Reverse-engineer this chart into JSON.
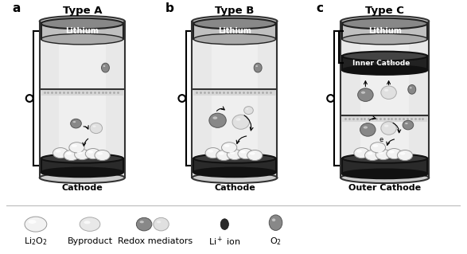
{
  "background_color": "#ffffff",
  "title_a": "Type A",
  "title_b": "Type B",
  "title_c": "Type C",
  "label_a": "a",
  "label_b": "b",
  "label_c": "c",
  "cathode_label_a": "Cathode",
  "cathode_label_b": "Cathode",
  "cathode_label_c": "Outer Cathode",
  "inner_cathode_label": "Inner Cathode",
  "lithium_label": "Lithium",
  "legend_li2o2": "Li$_2$O$_2$",
  "legend_byproduct": "Byproduct",
  "legend_redox": "Redox mediators",
  "legend_liion": "Li$^+$ ion",
  "legend_o2": "O$_2$",
  "figsize": [
    5.87,
    3.19
  ],
  "dpi": 100
}
